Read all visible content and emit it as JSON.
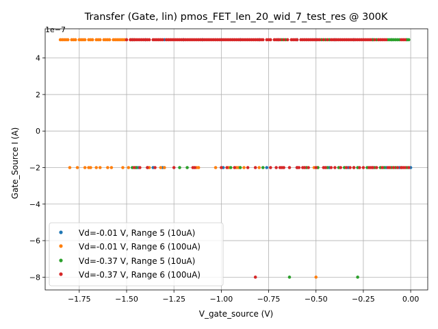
{
  "chart_data": {
    "type": "scatter",
    "title": "Transfer (Gate, lin) pmos_FET_len_20_wid_7_test_res @ 300K",
    "xlabel": "V_gate_source (V)",
    "ylabel": "Gate_Source I (A)",
    "y_offset_label": "1e−7",
    "y_scale": 1e-07,
    "xlim": [
      -1.93,
      0.09
    ],
    "ylim": [
      -8.7,
      5.6
    ],
    "x_ticks": [
      -1.75,
      -1.5,
      -1.25,
      -1.0,
      -0.75,
      -0.5,
      -0.25,
      0.0
    ],
    "x_tick_labels": [
      "−1.75",
      "−1.50",
      "−1.25",
      "−1.00",
      "−0.75",
      "−0.50",
      "−0.25",
      "0.00"
    ],
    "y_ticks": [
      -8,
      -6,
      -4,
      -2,
      0,
      2,
      4
    ],
    "y_tick_labels": [
      "−8",
      "−6",
      "−4",
      "−2",
      "0",
      "2",
      "4"
    ],
    "grid": true,
    "legend_position": "lower-left",
    "series": [
      {
        "name": "Vd=-0.01 V, Range 5 (10uA)",
        "color": "#1f77b4",
        "points": [
          [
            -1.44,
            -2
          ],
          [
            -1.39,
            -2
          ],
          [
            -1.36,
            -2
          ],
          [
            -1.31,
            -2
          ],
          [
            -0.99,
            -2
          ],
          [
            -0.76,
            -2
          ],
          [
            -0.6,
            -2
          ],
          [
            -0.43,
            -2
          ],
          [
            -0.33,
            -2
          ],
          [
            -0.2,
            -2
          ],
          [
            -0.13,
            -2
          ],
          [
            -0.06,
            -2
          ],
          [
            0.0,
            -2
          ],
          [
            -1.47,
            5
          ],
          [
            -1.4,
            5
          ],
          [
            -1.3,
            5
          ],
          [
            -1.2,
            5
          ],
          [
            -1.1,
            5
          ],
          [
            -1.0,
            5
          ],
          [
            -0.9,
            5
          ],
          [
            -0.8,
            5
          ],
          [
            -0.7,
            5
          ],
          [
            -0.6,
            5
          ],
          [
            -0.5,
            5
          ],
          [
            -0.4,
            5
          ],
          [
            -0.3,
            5
          ],
          [
            -0.2,
            5
          ],
          [
            -0.1,
            5
          ],
          [
            -0.02,
            5
          ]
        ]
      },
      {
        "name": "Vd=-0.01 V, Range 6 (100uA)",
        "color": "#ff7f0e",
        "points": [
          [
            -1.85,
            5
          ],
          [
            -1.84,
            5
          ],
          [
            -1.83,
            5
          ],
          [
            -1.82,
            5
          ],
          [
            -1.81,
            5
          ],
          [
            -1.79,
            5
          ],
          [
            -1.78,
            5
          ],
          [
            -1.77,
            5
          ],
          [
            -1.75,
            5
          ],
          [
            -1.74,
            5
          ],
          [
            -1.73,
            5
          ],
          [
            -1.72,
            5
          ],
          [
            -1.7,
            5
          ],
          [
            -1.69,
            5
          ],
          [
            -1.68,
            5
          ],
          [
            -1.66,
            5
          ],
          [
            -1.65,
            5
          ],
          [
            -1.64,
            5
          ],
          [
            -1.62,
            5
          ],
          [
            -1.61,
            5
          ],
          [
            -1.6,
            5
          ],
          [
            -1.59,
            5
          ],
          [
            -1.57,
            5
          ],
          [
            -1.56,
            5
          ],
          [
            -1.55,
            5
          ],
          [
            -1.54,
            5
          ],
          [
            -1.53,
            5
          ],
          [
            -1.52,
            5
          ],
          [
            -1.51,
            5
          ],
          [
            -1.48,
            5
          ],
          [
            -1.46,
            5
          ],
          [
            -1.8,
            -2
          ],
          [
            -1.76,
            -2
          ],
          [
            -1.72,
            -2
          ],
          [
            -1.7,
            -2
          ],
          [
            -1.69,
            -2
          ],
          [
            -1.66,
            -2
          ],
          [
            -1.64,
            -2
          ],
          [
            -1.6,
            -2
          ],
          [
            -1.58,
            -2
          ],
          [
            -1.52,
            -2
          ],
          [
            -1.49,
            -2
          ],
          [
            -1.45,
            -2
          ],
          [
            -1.38,
            -2
          ],
          [
            -1.32,
            -2
          ],
          [
            -1.3,
            -2
          ],
          [
            -1.13,
            -2
          ],
          [
            -1.12,
            -2
          ],
          [
            -1.03,
            -2
          ],
          [
            -0.96,
            -2
          ],
          [
            -0.92,
            -2
          ],
          [
            -0.91,
            -2
          ],
          [
            -0.9,
            -2
          ],
          [
            -0.88,
            -2
          ],
          [
            -0.8,
            -2
          ],
          [
            -0.51,
            -2
          ],
          [
            -0.49,
            -2
          ],
          [
            -0.5,
            -8
          ]
        ]
      },
      {
        "name": "Vd=-0.37 V, Range 5 (10uA)",
        "color": "#2ca02c",
        "points": [
          [
            -1.47,
            -2
          ],
          [
            -1.45,
            -2
          ],
          [
            -1.22,
            -2
          ],
          [
            -1.18,
            -2
          ],
          [
            -0.95,
            -2
          ],
          [
            -0.9,
            -2
          ],
          [
            -0.78,
            -2
          ],
          [
            -0.55,
            -2
          ],
          [
            -0.49,
            -2
          ],
          [
            -0.44,
            -2
          ],
          [
            -0.38,
            -2
          ],
          [
            -0.35,
            -2
          ],
          [
            -0.3,
            -2
          ],
          [
            -0.28,
            -2
          ],
          [
            -0.23,
            -2
          ],
          [
            -0.19,
            -2
          ],
          [
            -0.16,
            -2
          ],
          [
            -0.14,
            -2
          ],
          [
            -0.1,
            -2
          ],
          [
            -0.08,
            -2
          ],
          [
            -0.05,
            -2
          ],
          [
            -0.02,
            -2
          ],
          [
            -0.68,
            5
          ],
          [
            -0.66,
            5
          ],
          [
            -0.47,
            5
          ],
          [
            -0.45,
            5
          ],
          [
            -0.43,
            5
          ],
          [
            -0.2,
            5
          ],
          [
            -0.18,
            5
          ],
          [
            -0.12,
            5
          ],
          [
            -0.11,
            5
          ],
          [
            -0.1,
            5
          ],
          [
            -0.09,
            5
          ],
          [
            -0.08,
            5
          ],
          [
            -0.07,
            5
          ],
          [
            -0.06,
            5
          ],
          [
            -0.02,
            5
          ],
          [
            -0.01,
            5
          ],
          [
            -0.64,
            -8
          ],
          [
            -0.28,
            -8
          ]
        ]
      },
      {
        "name": "Vd=-0.37 V, Range 6 (100uA)",
        "color": "#d62728",
        "points": [
          [
            -1.46,
            -2
          ],
          [
            -1.43,
            -2
          ],
          [
            -1.39,
            -2
          ],
          [
            -1.35,
            -2
          ],
          [
            -1.25,
            -2
          ],
          [
            -1.15,
            -2
          ],
          [
            -1.14,
            -2
          ],
          [
            -1.0,
            -2
          ],
          [
            -0.97,
            -2
          ],
          [
            -0.93,
            -2
          ],
          [
            -0.86,
            -2
          ],
          [
            -0.82,
            -2
          ],
          [
            -0.74,
            -2
          ],
          [
            -0.71,
            -2
          ],
          [
            -0.69,
            -2
          ],
          [
            -0.68,
            -2
          ],
          [
            -0.67,
            -2
          ],
          [
            -0.64,
            -2
          ],
          [
            -0.6,
            -2
          ],
          [
            -0.59,
            -2
          ],
          [
            -0.57,
            -2
          ],
          [
            -0.56,
            -2
          ],
          [
            -0.54,
            -2
          ],
          [
            -0.5,
            -2
          ],
          [
            -0.46,
            -2
          ],
          [
            -0.45,
            -2
          ],
          [
            -0.42,
            -2
          ],
          [
            -0.4,
            -2
          ],
          [
            -0.37,
            -2
          ],
          [
            -0.34,
            -2
          ],
          [
            -0.32,
            -2
          ],
          [
            -0.3,
            -2
          ],
          [
            -0.27,
            -2
          ],
          [
            -0.25,
            -2
          ],
          [
            -0.22,
            -2
          ],
          [
            -0.21,
            -2
          ],
          [
            -0.2,
            -2
          ],
          [
            -0.18,
            -2
          ],
          [
            -0.15,
            -2
          ],
          [
            -0.12,
            -2
          ],
          [
            -0.11,
            -2
          ],
          [
            -0.09,
            -2
          ],
          [
            -0.07,
            -2
          ],
          [
            -0.05,
            -2
          ],
          [
            -0.04,
            -2
          ],
          [
            -0.03,
            -2
          ],
          [
            -0.01,
            -2
          ],
          [
            -1.5,
            5
          ],
          [
            -1.48,
            5
          ],
          [
            -1.47,
            5
          ],
          [
            -1.46,
            5
          ],
          [
            -1.45,
            5
          ],
          [
            -1.44,
            5
          ],
          [
            -1.43,
            5
          ],
          [
            -1.42,
            5
          ],
          [
            -1.41,
            5
          ],
          [
            -1.4,
            5
          ],
          [
            -1.39,
            5
          ],
          [
            -1.38,
            5
          ],
          [
            -1.36,
            5
          ],
          [
            -1.35,
            5
          ],
          [
            -1.34,
            5
          ],
          [
            -1.33,
            5
          ],
          [
            -1.32,
            5
          ],
          [
            -1.31,
            5
          ],
          [
            -1.29,
            5
          ],
          [
            -1.28,
            5
          ],
          [
            -1.27,
            5
          ],
          [
            -1.26,
            5
          ],
          [
            -1.25,
            5
          ],
          [
            -1.24,
            5
          ],
          [
            -1.23,
            5
          ],
          [
            -1.22,
            5
          ],
          [
            -1.21,
            5
          ],
          [
            -1.2,
            5
          ],
          [
            -1.19,
            5
          ],
          [
            -1.18,
            5
          ],
          [
            -1.17,
            5
          ],
          [
            -1.16,
            5
          ],
          [
            -1.15,
            5
          ],
          [
            -1.14,
            5
          ],
          [
            -1.13,
            5
          ],
          [
            -1.12,
            5
          ],
          [
            -1.11,
            5
          ],
          [
            -1.1,
            5
          ],
          [
            -1.09,
            5
          ],
          [
            -1.08,
            5
          ],
          [
            -1.07,
            5
          ],
          [
            -1.06,
            5
          ],
          [
            -1.05,
            5
          ],
          [
            -1.04,
            5
          ],
          [
            -1.03,
            5
          ],
          [
            -1.02,
            5
          ],
          [
            -1.01,
            5
          ],
          [
            -1.0,
            5
          ],
          [
            -0.99,
            5
          ],
          [
            -0.98,
            5
          ],
          [
            -0.97,
            5
          ],
          [
            -0.96,
            5
          ],
          [
            -0.95,
            5
          ],
          [
            -0.94,
            5
          ],
          [
            -0.93,
            5
          ],
          [
            -0.92,
            5
          ],
          [
            -0.91,
            5
          ],
          [
            -0.9,
            5
          ],
          [
            -0.89,
            5
          ],
          [
            -0.88,
            5
          ],
          [
            -0.87,
            5
          ],
          [
            -0.86,
            5
          ],
          [
            -0.85,
            5
          ],
          [
            -0.84,
            5
          ],
          [
            -0.83,
            5
          ],
          [
            -0.82,
            5
          ],
          [
            -0.81,
            5
          ],
          [
            -0.8,
            5
          ],
          [
            -0.79,
            5
          ],
          [
            -0.78,
            5
          ],
          [
            -0.76,
            5
          ],
          [
            -0.75,
            5
          ],
          [
            -0.74,
            5
          ],
          [
            -0.72,
            5
          ],
          [
            -0.71,
            5
          ],
          [
            -0.7,
            5
          ],
          [
            -0.69,
            5
          ],
          [
            -0.67,
            5
          ],
          [
            -0.65,
            5
          ],
          [
            -0.63,
            5
          ],
          [
            -0.62,
            5
          ],
          [
            -0.61,
            5
          ],
          [
            -0.6,
            5
          ],
          [
            -0.58,
            5
          ],
          [
            -0.57,
            5
          ],
          [
            -0.56,
            5
          ],
          [
            -0.55,
            5
          ],
          [
            -0.54,
            5
          ],
          [
            -0.53,
            5
          ],
          [
            -0.52,
            5
          ],
          [
            -0.51,
            5
          ],
          [
            -0.5,
            5
          ],
          [
            -0.49,
            5
          ],
          [
            -0.48,
            5
          ],
          [
            -0.46,
            5
          ],
          [
            -0.44,
            5
          ],
          [
            -0.42,
            5
          ],
          [
            -0.41,
            5
          ],
          [
            -0.4,
            5
          ],
          [
            -0.39,
            5
          ],
          [
            -0.38,
            5
          ],
          [
            -0.37,
            5
          ],
          [
            -0.36,
            5
          ],
          [
            -0.35,
            5
          ],
          [
            -0.34,
            5
          ],
          [
            -0.33,
            5
          ],
          [
            -0.32,
            5
          ],
          [
            -0.31,
            5
          ],
          [
            -0.3,
            5
          ],
          [
            -0.29,
            5
          ],
          [
            -0.28,
            5
          ],
          [
            -0.27,
            5
          ],
          [
            -0.26,
            5
          ],
          [
            -0.25,
            5
          ],
          [
            -0.24,
            5
          ],
          [
            -0.23,
            5
          ],
          [
            -0.22,
            5
          ],
          [
            -0.21,
            5
          ],
          [
            -0.19,
            5
          ],
          [
            -0.17,
            5
          ],
          [
            -0.16,
            5
          ],
          [
            -0.15,
            5
          ],
          [
            -0.14,
            5
          ],
          [
            -0.13,
            5
          ],
          [
            -0.05,
            5
          ],
          [
            -0.04,
            5
          ],
          [
            -0.03,
            5
          ],
          [
            -0.82,
            -8
          ]
        ]
      }
    ]
  }
}
